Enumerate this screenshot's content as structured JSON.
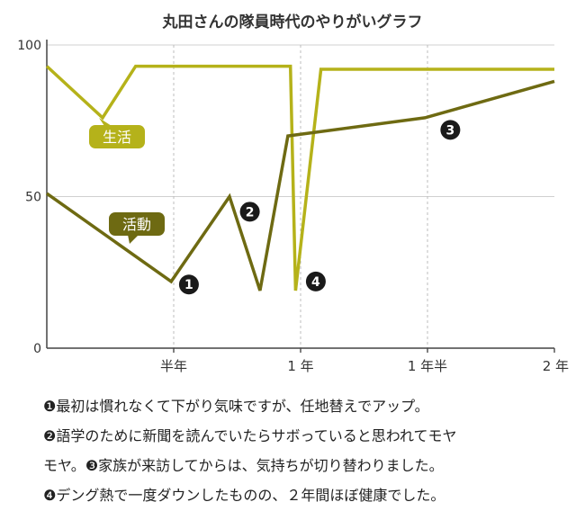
{
  "chart_data": {
    "type": "line",
    "title": "丸田さんの隊員時代のやりがいグラフ",
    "xlabel": "",
    "ylabel": "",
    "x_unit": "年",
    "xlim": [
      0,
      2
    ],
    "ylim": [
      0,
      100
    ],
    "yticks": [
      0,
      50,
      100
    ],
    "xticks": [
      {
        "value": 0.5,
        "label": "半年"
      },
      {
        "value": 1.0,
        "label": "1 年"
      },
      {
        "value": 1.5,
        "label": "1 年半"
      },
      {
        "value": 2.0,
        "label": "2 年"
      }
    ],
    "grid": "dashed vertical lines at x ticks, solid horizontal lines at y ticks",
    "series": [
      {
        "name": "生活",
        "color": "#b5b21a",
        "x": [
          0,
          0.22,
          0.35,
          0.96,
          0.98,
          1.08,
          2.0
        ],
        "y": [
          93,
          76,
          93,
          93,
          19,
          92,
          92
        ]
      },
      {
        "name": "活動",
        "color": "#6e6a12",
        "x": [
          0,
          0.49,
          0.72,
          0.84,
          0.95,
          1.49,
          2.0
        ],
        "y": [
          51,
          22,
          50,
          19,
          70,
          76,
          88
        ]
      }
    ],
    "annotations": [
      {
        "label": "❶",
        "x": 0.56,
        "y": 21
      },
      {
        "label": "❷",
        "x": 0.8,
        "y": 45
      },
      {
        "label": "❸",
        "x": 1.59,
        "y": 72
      },
      {
        "label": "❹",
        "x": 1.06,
        "y": 22
      }
    ]
  },
  "notes": [
    "❶最初は慣れなくて下がり気味ですが、任地替えでアップ。",
    "❷語学のために新聞を読んでいたらサボっていると思われてモヤ",
    "モヤ。❸家族が来訪してからは、気持ちが切り替わりました。",
    "❹デング熱で一度ダウンしたものの、２年間ほぼ健康でした。"
  ]
}
